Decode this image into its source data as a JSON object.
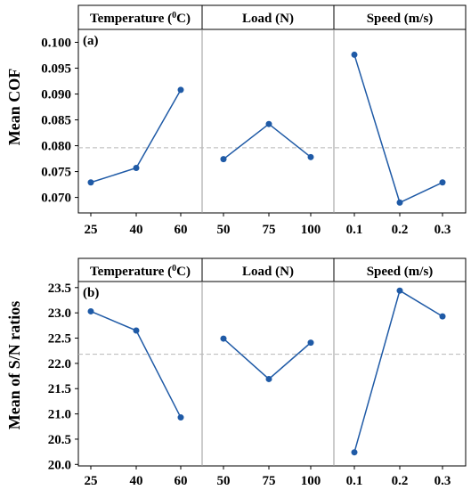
{
  "chart_data": [
    {
      "type": "line",
      "panel_label": "(a)",
      "ylabel": "Mean  COF",
      "ylim": [
        0.067,
        0.1025
      ],
      "yticks": [
        "0.070",
        "0.075",
        "0.080",
        "0.085",
        "0.090",
        "0.095",
        "0.100"
      ],
      "reference_line": 0.0796,
      "facets": [
        {
          "title": "Temperature (<sup>0</sup>C)",
          "title_main": "Temperature (",
          "title_sup": "0",
          "title_end": "C)",
          "categories": [
            "25",
            "40",
            "60"
          ],
          "values": [
            0.0729,
            0.0757,
            0.0908
          ]
        },
        {
          "title_main": "Load (N)",
          "categories": [
            "50",
            "75",
            "100"
          ],
          "values": [
            0.0774,
            0.0842,
            0.0778
          ]
        },
        {
          "title_main": "Speed (m/s)",
          "categories": [
            "0.1",
            "0.2",
            "0.3"
          ],
          "values": [
            0.0976,
            0.069,
            0.0729
          ]
        }
      ]
    },
    {
      "type": "line",
      "panel_label": "(b)",
      "ylabel": "Mean  of S/N ratios",
      "ylim": [
        19.97,
        23.62
      ],
      "yticks": [
        "20.0",
        "20.5",
        "21.0",
        "21.5",
        "22.0",
        "22.5",
        "23.0",
        "23.5"
      ],
      "reference_line": 22.18,
      "facets": [
        {
          "title_main": "Temperature (",
          "title_sup": "0",
          "title_end": "C)",
          "categories": [
            "25",
            "40",
            "60"
          ],
          "values": [
            23.03,
            22.65,
            20.93
          ]
        },
        {
          "title_main": "Load (N)",
          "categories": [
            "50",
            "75",
            "100"
          ],
          "values": [
            22.49,
            21.69,
            22.41
          ]
        },
        {
          "title_main": "Speed (m/s)",
          "categories": [
            "0.1",
            "0.2",
            "0.3"
          ],
          "values": [
            20.24,
            23.44,
            22.93
          ]
        }
      ]
    }
  ],
  "colors": {
    "series": "#1f5aa6",
    "reference": "#b8b8b8",
    "divider": "#9a9a9a",
    "frame": "#000000"
  }
}
